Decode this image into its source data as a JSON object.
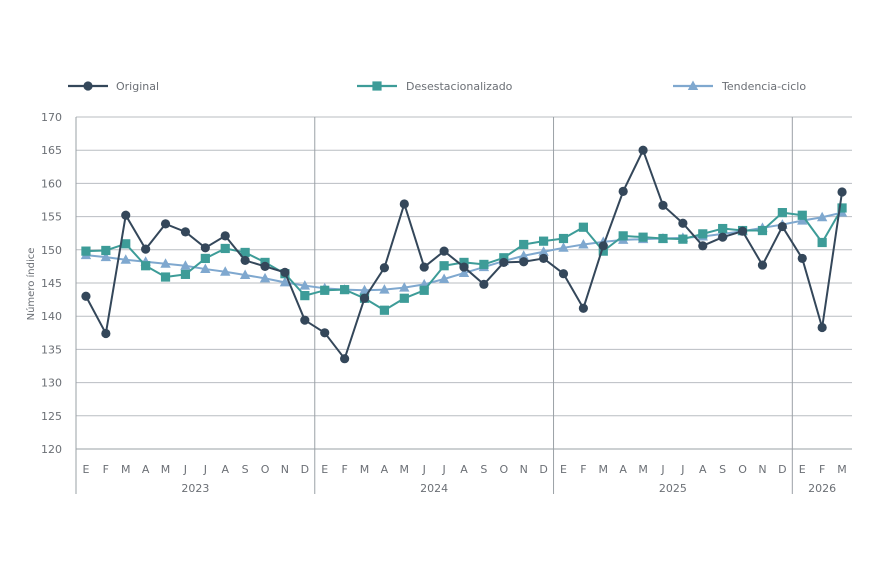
{
  "chart_data": {
    "type": "line",
    "ylabel": "Número índice",
    "ylim": [
      120,
      170
    ],
    "yticks": [
      120,
      125,
      130,
      135,
      140,
      145,
      150,
      155,
      160,
      165,
      170
    ],
    "grid": true,
    "legend_position": "top",
    "x": [
      "E",
      "F",
      "M",
      "A",
      "M",
      "J",
      "J",
      "A",
      "S",
      "O",
      "N",
      "D",
      "E",
      "F",
      "M",
      "A",
      "M",
      "J",
      "J",
      "A",
      "S",
      "O",
      "N",
      "D",
      "E",
      "F",
      "M",
      "A",
      "M",
      "J",
      "J",
      "A",
      "S",
      "O",
      "N",
      "D",
      "E",
      "F",
      "M"
    ],
    "years": [
      {
        "label": "2023",
        "months": 12
      },
      {
        "label": "2024",
        "months": 12
      },
      {
        "label": "2025",
        "months": 12
      },
      {
        "label": "2026",
        "months": 3
      }
    ],
    "series": [
      {
        "name": "Original",
        "color": "#34475a",
        "marker": "circle",
        "values": [
          143.0,
          137.4,
          155.2,
          150.1,
          153.9,
          152.7,
          150.3,
          152.1,
          148.4,
          147.5,
          146.6,
          139.4,
          137.5,
          133.6,
          142.7,
          147.3,
          156.9,
          147.4,
          149.8,
          147.4,
          144.8,
          148.1,
          148.2,
          148.7,
          146.4,
          141.2,
          150.6,
          158.8,
          165.0,
          156.7,
          154.0,
          150.6,
          151.9,
          152.8,
          147.7,
          153.5,
          148.7,
          138.3,
          158.7
        ]
      },
      {
        "name": "Desestacionalizado",
        "color": "#3d9c98",
        "marker": "square",
        "values": [
          149.8,
          149.9,
          150.9,
          147.6,
          145.9,
          146.3,
          148.7,
          150.2,
          149.6,
          148.1,
          146.4,
          143.1,
          143.9,
          144.0,
          142.7,
          140.9,
          142.7,
          143.9,
          147.6,
          148.1,
          147.8,
          148.8,
          150.8,
          151.3,
          151.7,
          153.4,
          149.8,
          152.1,
          151.9,
          151.7,
          151.6,
          152.4,
          153.2,
          152.9,
          152.9,
          155.6,
          155.2,
          151.1,
          156.3
        ]
      },
      {
        "name": "Tendencia-ciclo",
        "color": "#7fa8cf",
        "marker": "triangle",
        "values": [
          149.2,
          148.9,
          148.5,
          148.2,
          147.9,
          147.6,
          147.1,
          146.7,
          146.2,
          145.7,
          145.1,
          144.6,
          144.2,
          144.0,
          143.9,
          144.0,
          144.3,
          144.8,
          145.6,
          146.5,
          147.4,
          148.3,
          149.1,
          149.7,
          150.3,
          150.8,
          151.2,
          151.5,
          151.6,
          151.7,
          151.8,
          152.0,
          152.4,
          152.8,
          153.3,
          153.8,
          154.4,
          154.9,
          155.6
        ]
      }
    ]
  }
}
